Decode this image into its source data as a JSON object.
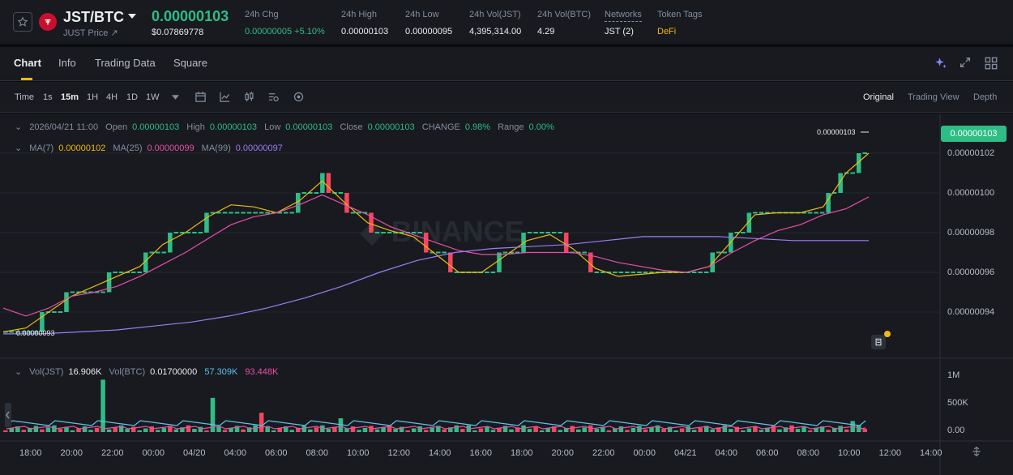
{
  "ticker": {
    "pair": "JST/BTC",
    "sub_label": "JUST Price ↗",
    "last_price": "0.00000103",
    "usd_price": "$0.07869778",
    "stats": [
      {
        "label": "24h Chg",
        "value": "0.00000005 +5.10%"
      },
      {
        "label": "24h High",
        "value": "0.00000103"
      },
      {
        "label": "24h Low",
        "value": "0.00000095"
      },
      {
        "label": "24h Vol(JST)",
        "value": "4,395,314.00"
      },
      {
        "label": "24h Vol(BTC)",
        "value": "4.29"
      },
      {
        "label": "Networks",
        "value": "JST (2)"
      },
      {
        "label": "Token Tags",
        "value": "DeFi"
      }
    ],
    "colors": {
      "up": "#2ebd85",
      "down": "#f6465d",
      "accent": "#f0b90b"
    }
  },
  "tabs": [
    "Chart",
    "Info",
    "Trading Data",
    "Square"
  ],
  "toolbar": {
    "intervals": [
      "Time",
      "1s",
      "15m",
      "1H",
      "4H",
      "1D",
      "1W"
    ],
    "active_interval": "15m",
    "views": [
      "Original",
      "Trading View",
      "Depth"
    ],
    "active_view": "Original"
  },
  "legend": {
    "date": "2026/04/21 11:00",
    "open_label": "Open",
    "open": "0.00000103",
    "high_label": "High",
    "high": "0.00000103",
    "low_label": "Low",
    "low": "0.00000103",
    "close_label": "Close",
    "close": "0.00000103",
    "change_label": "CHANGE",
    "change": "0.98%",
    "range_label": "Range",
    "range": "0.00%",
    "ma7_label": "MA(7)",
    "ma7": "0.00000102",
    "ma25_label": "MA(25)",
    "ma25": "0.00000099",
    "ma99_label": "MA(99)",
    "ma99": "0.00000097",
    "vol_jst_label": "Vol(JST)",
    "vol_jst": "16.906K",
    "vol_btc_label": "Vol(BTC)",
    "vol_btc": "0.01700000",
    "vol_ma1": "57.309K",
    "vol_ma2": "93.448K"
  },
  "price_tag": "0.00000103",
  "high_marker": "0.00000103",
  "low_marker": "0.00000093",
  "chart_data": {
    "type": "candlestick",
    "y_ticks": [
      "0.00000102",
      "0.00000100",
      "0.00000098",
      "0.00000096",
      "0.00000094"
    ],
    "y_values": [
      102,
      100,
      98,
      96,
      94
    ],
    "vol_ticks": [
      "1M",
      "500K",
      "0.00"
    ],
    "x_ticks": [
      "18:00",
      "20:00",
      "22:00",
      "00:00",
      "04/20",
      "04:00",
      "06:00",
      "08:00",
      "10:00",
      "12:00",
      "14:00",
      "16:00",
      "18:00",
      "20:00",
      "22:00",
      "00:00",
      "04/21",
      "04:00",
      "06:00",
      "08:00",
      "10:00",
      "12:00",
      "14:00"
    ],
    "series": [
      {
        "name": "MA(7)",
        "color": "#f0b90b",
        "values": [
          93.0,
          93.2,
          94.0,
          94.8,
          95.3,
          95.8,
          96.3,
          97.4,
          98.0,
          98.8,
          99.4,
          99.3,
          99.0,
          99.6,
          100.6,
          99.5,
          98.5,
          98.1,
          97.8,
          96.9,
          96.0,
          96.0,
          96.8,
          97.6,
          97.9,
          97.2,
          96.2,
          95.8,
          95.9,
          96.0,
          96.0,
          96.3,
          97.6,
          98.9,
          99.0,
          99.0,
          99.3,
          101.0,
          102.0
        ]
      },
      {
        "name": "MA(25)",
        "color": "#e84fa8",
        "values": [
          94.2,
          93.8,
          94.2,
          94.8,
          95.0,
          95.3,
          95.8,
          96.4,
          97.0,
          97.7,
          98.4,
          98.8,
          99.0,
          99.4,
          99.9,
          99.4,
          98.9,
          98.3,
          97.9,
          97.5,
          97.1,
          96.9,
          96.9,
          97.0,
          97.0,
          97.0,
          96.8,
          96.5,
          96.3,
          96.1,
          96.0,
          96.3,
          97.0,
          97.6,
          98.1,
          98.4,
          98.9,
          99.2,
          99.8
        ]
      },
      {
        "name": "MA(99)",
        "color": "#9e7cf4",
        "values": [
          92.9,
          92.9,
          93.0,
          93.1,
          93.3,
          93.5,
          93.8,
          94.2,
          94.7,
          95.3,
          96.0,
          96.6,
          97.0,
          97.2,
          97.3,
          97.4,
          97.6,
          97.8,
          97.8,
          97.8,
          97.7,
          97.6,
          97.6,
          97.6
        ]
      }
    ],
    "volume_scale_max": 1000000
  }
}
